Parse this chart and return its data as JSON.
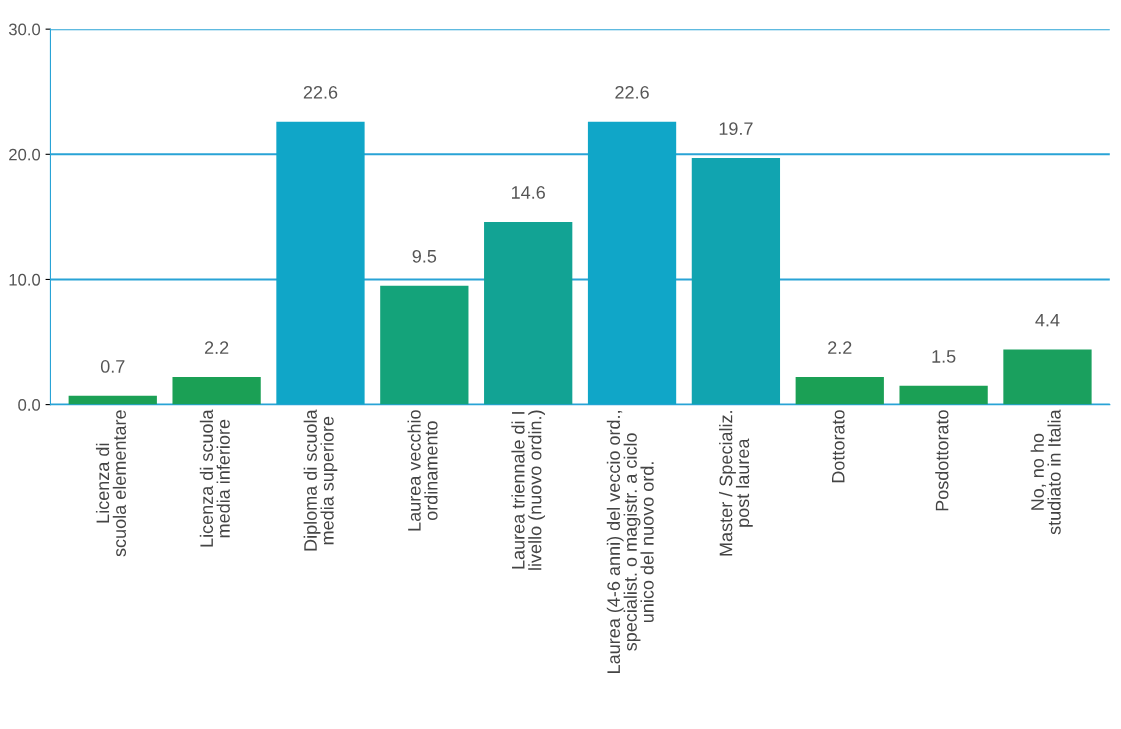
{
  "chart_data": {
    "type": "bar",
    "categories": [
      "Licenza di\nscuola elementare",
      "Licenza di scuola\nmedia inferiore",
      "Diploma di scuola\nmedia superiore",
      "Laurea vecchio\nordinamento",
      "Laurea triennale di I\nlivello (nuovo ordin.)",
      "Laurea (4-6 anni) del veccio ord.,\nspecialist. o magistr. a ciclo\nunico del nuovo ord.",
      "Master / Specializ.\npost laurea",
      "Dottorato",
      "Posdottorato",
      "No, no ho\nstudiato in Italia"
    ],
    "values": [
      0.7,
      2.2,
      22.6,
      9.5,
      14.6,
      22.6,
      19.7,
      2.2,
      1.5,
      4.4
    ],
    "colors": [
      "#1ba055",
      "#1ba055",
      "#10a6c8",
      "#14a37a",
      "#12a394",
      "#10a6c8",
      "#11a4b0",
      "#1ba055",
      "#1ba055",
      "#1aa05e"
    ],
    "data_labels": true,
    "ylim": [
      0,
      30
    ],
    "yticks": [
      {
        "value": 0,
        "label": "0.0"
      },
      {
        "value": 10,
        "label": "10.0"
      },
      {
        "value": 20,
        "label": "20.0"
      },
      {
        "value": 30,
        "label": "30.0"
      }
    ],
    "grid": "y"
  }
}
